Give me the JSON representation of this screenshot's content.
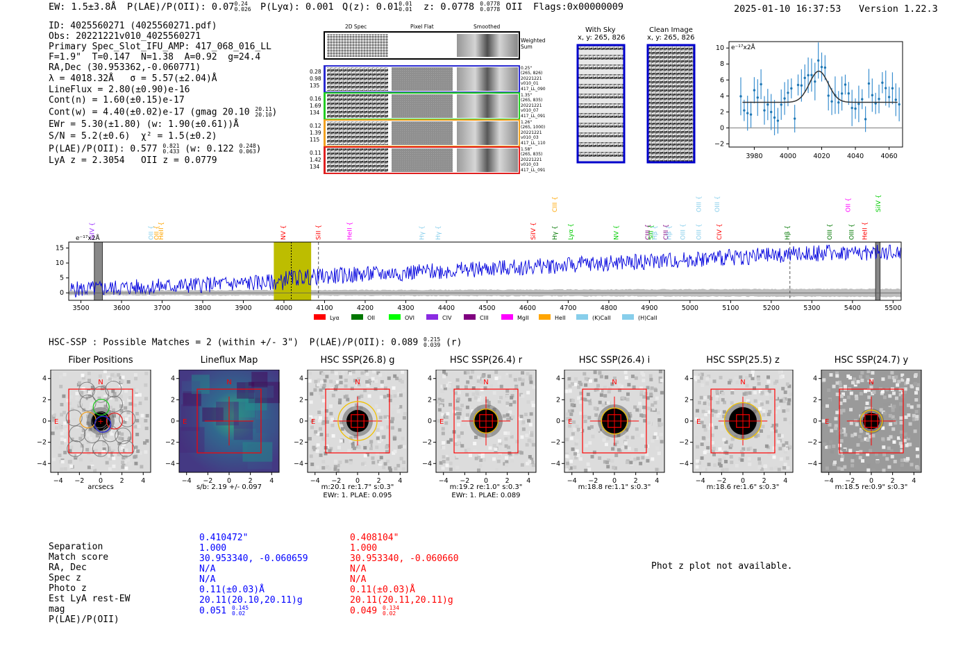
{
  "header": {
    "ew": "EW: 1.5±3.8Å",
    "plae_label": "P(LAE)/P(OII): 0.07",
    "plae_hi": "0.24",
    "plae_lo": "0.026",
    "plya": "P(Lyα): 0.001",
    "qz_label": "Q(z): 0.01",
    "qz_hi": "0.01",
    "qz_lo": "0.01",
    "z_label": "z: 0.0778",
    "z_hi": "0.0778",
    "z_lo": "0.0778",
    "z_type": "OII",
    "flags": "Flags:0x00000009",
    "datetime": "2025-01-10 16:37:53",
    "version": "Version 1.22.3"
  },
  "info": {
    "id": "ID: 4025560271 (4025560271.pdf)",
    "obs": "Obs: 20221221v010_4025560271",
    "primary": "Primary Spec_Slot_IFU_AMP: 417_068_016_LL",
    "params": "F=1.9\"  T=0.147  N=1.38  A=0.92  g=24.4",
    "radec": "RA,Dec (30.953362,-0.060771)",
    "lambda": "λ = 4018.32Å   σ = 5.57(±2.04)Å",
    "lineflux": "LineFlux = 2.80(±0.90)e-16",
    "contn": "Cont(n) = 1.60(±0.15)e-17",
    "contw": "Cont(w) = 4.40(±0.02)e-17 (gmag 20.10",
    "contw_hi": "20.11",
    "contw_lo": "20.10",
    "ewr": "EWr = 5.30(±1.80) (w: 1.90(±0.61))Å",
    "sn": "S/N = 5.2(±0.6)  χ² = 1.5(±0.2)",
    "plae": "P(LAE)/P(OII): 0.577",
    "plae_hi": "0.821",
    "plae_lo": "0.433",
    "plae_w": "(w: 0.122",
    "plae_w_hi": "0.248",
    "plae_w_lo": "0.063",
    "lya_z": "LyA z = 2.3054   OII z = 0.0779"
  },
  "cutouts": {
    "col_2d": "2D Spec",
    "col_flat": "Pixel Flat",
    "col_smooth": "Smoothed",
    "weighted": "Weighted Sum",
    "fibers": [
      {
        "w1": "0.28",
        "w2": "0.98",
        "w3": "135",
        "d": "0.25\"",
        "xy": "(265, 826)",
        "date": "20221221",
        "shot": "v010_01",
        "amp": "417_LL_090",
        "color": "#2a2ad0"
      },
      {
        "w1": "0.16",
        "w2": "1.69",
        "w3": "134",
        "d": "1.35\"",
        "xy": "(265, 835)",
        "date": "20221221",
        "shot": "v010_07",
        "amp": "417_LL_091",
        "color": "#22cc22"
      },
      {
        "w1": "0.12",
        "w2": "1.39",
        "w3": "115",
        "d": "1.26\"",
        "xy": "(265, 1000)",
        "date": "20221221",
        "shot": "v010_03",
        "amp": "417_LL_110",
        "color": "#f0a020"
      },
      {
        "w1": "0.11",
        "w2": "1.42",
        "w3": "134",
        "d": "1.58\"",
        "xy": "(265, 835)",
        "date": "20221221",
        "shot": "v010_03",
        "amp": "417_LL_091",
        "color": "#e02020"
      }
    ],
    "with_sky": "With Sky",
    "with_sky_xy": "x, y: 265, 826",
    "clean": "Clean Image",
    "clean_xy": "x, y: 265, 826"
  },
  "zoom_plot": {
    "unit": "e⁻¹⁷x2Å",
    "xticks": [
      "3980",
      "4000",
      "4020",
      "4040",
      "4060"
    ],
    "yticks": [
      "10",
      "8",
      "6",
      "4",
      "2",
      "0",
      "−2"
    ]
  },
  "spectrum": {
    "unit": "e⁻¹⁷x2Å",
    "xticks": [
      "3500",
      "3600",
      "3700",
      "3800",
      "3900",
      "4000",
      "4100",
      "4200",
      "4300",
      "4400",
      "4500",
      "4600",
      "4700",
      "4800",
      "4900",
      "5000",
      "5100",
      "5200",
      "5300",
      "5400",
      "5500"
    ],
    "yticks": [
      "15",
      "10",
      "5",
      "0"
    ],
    "legend": [
      {
        "label": "Lyα",
        "color": "#ff0000"
      },
      {
        "label": "OII",
        "color": "#007700"
      },
      {
        "label": "OVI",
        "color": "#00ff00"
      },
      {
        "label": "CIV",
        "color": "#8a2be2"
      },
      {
        "label": "CIII",
        "color": "#800080"
      },
      {
        "label": "MgII",
        "color": "#ff00ff"
      },
      {
        "label": "HeII",
        "color": "#ffa500"
      },
      {
        "label": "(K)CaII",
        "color": "#87ceeb"
      },
      {
        "label": "(H)CaII",
        "color": "#87ceeb"
      }
    ],
    "lines": [
      {
        "label": "SiIV",
        "wave": 3527,
        "color": "#9b30ff",
        "row": 1
      },
      {
        "label": "OII",
        "wave": 3673,
        "color": "#87ceeb",
        "row": 1
      },
      {
        "label": "OII",
        "wave": 3686,
        "color": "#ffa500",
        "row": 1
      },
      {
        "label": "HeII",
        "wave": 3697,
        "color": "#ffa500",
        "row": 1
      },
      {
        "label": "NV",
        "wave": 3998,
        "color": "#ff0000",
        "row": 1
      },
      {
        "label": "SiII",
        "wave": 4085,
        "color": "#ff0000",
        "row": 1
      },
      {
        "label": "HeII",
        "wave": 4162,
        "color": "#ff00ff",
        "row": 1
      },
      {
        "label": "Hγ",
        "wave": 4339,
        "color": "#87ceeb",
        "row": 1
      },
      {
        "label": "Hγ",
        "wave": 4380,
        "color": "#87ceeb",
        "row": 1
      },
      {
        "label": "SiIV",
        "wave": 4614,
        "color": "#ff0000",
        "row": 1
      },
      {
        "label": "CIII",
        "wave": 4667,
        "color": "#ffa500",
        "row": 0
      },
      {
        "label": "Hγ",
        "wave": 4667,
        "color": "#007700",
        "row": 1
      },
      {
        "label": "Lyα",
        "wave": 4706,
        "color": "#00cc00",
        "row": 1
      },
      {
        "label": "NV",
        "wave": 4818,
        "color": "#00cc00",
        "row": 1
      },
      {
        "label": "CIII",
        "wave": 4896,
        "color": "#800080",
        "row": 1
      },
      {
        "label": "SiII",
        "wave": 4904,
        "color": "#00cc00",
        "row": 1
      },
      {
        "label": "Hβ",
        "wave": 4913,
        "color": "#87ceeb",
        "row": 1
      },
      {
        "label": "CIII",
        "wave": 4940,
        "color": "#800080",
        "row": 1
      },
      {
        "label": "Hβ",
        "wave": 4948,
        "color": "#87ceeb",
        "row": 1
      },
      {
        "label": "OIII",
        "wave": 4982,
        "color": "#87ceeb",
        "row": 1
      },
      {
        "label": "OIII",
        "wave": 5022,
        "color": "#87ceeb",
        "row": 1
      },
      {
        "label": "OIII",
        "wave": 5022,
        "color": "#87ceeb",
        "row": 0
      },
      {
        "label": "OIII",
        "wave": 5067,
        "color": "#87ceeb",
        "row": 0
      },
      {
        "label": "CIV",
        "wave": 5072,
        "color": "#ff0000",
        "row": 1
      },
      {
        "label": "Hβ",
        "wave": 5240,
        "color": "#007700",
        "row": 1
      },
      {
        "label": "OIII",
        "wave": 5344,
        "color": "#007700",
        "row": 1
      },
      {
        "label": "OII",
        "wave": 5389,
        "color": "#ff00ff",
        "row": 0
      },
      {
        "label": "OIII",
        "wave": 5398,
        "color": "#007700",
        "row": 1
      },
      {
        "label": "HeII",
        "wave": 5430,
        "color": "#ff0000",
        "row": 1
      },
      {
        "label": "SiIV",
        "wave": 5464,
        "color": "#00cc00",
        "row": 0
      }
    ]
  },
  "hsc": {
    "summary": "HSC-SSP : Possible Matches = 2 (within +/- 3\")  P(LAE)/P(OII): 0.089",
    "summary_hi": "0.215",
    "summary_lo": "0.039",
    "summary_band": "(r)",
    "panels": [
      {
        "title": "Fiber Positions",
        "l1": "arcsecs",
        "l2": ""
      },
      {
        "title": "Lineflux Map",
        "l1": "s/b: 2.19 +/- 0.097",
        "l2": ""
      },
      {
        "title": "HSC SSP(26.8) g",
        "l1": "m:20.1  re:1.7\"  s:0.3\"",
        "l2": "EWr: 1. PLAE: 0.095"
      },
      {
        "title": "HSC SSP(26.4) r",
        "l1": "m:19.2  re:1.0\"  s:0.3\"",
        "l2": "EWr: 1. PLAE: 0.089"
      },
      {
        "title": "HSC SSP(26.4) i",
        "l1": "m:18.8  re:1.1\"  s:0.3\"",
        "l2": ""
      },
      {
        "title": "HSC SSP(25.5) z",
        "l1": "m:18.6  re:1.6\"  s:0.3\"",
        "l2": ""
      },
      {
        "title": "HSC SSP(24.7) y",
        "l1": "m:18.5  re:0.9\"  s:0.3\"",
        "l2": ""
      }
    ],
    "ticks": [
      "−4",
      "−2",
      "0",
      "2",
      "4"
    ],
    "yticks": [
      "4",
      "2",
      "0",
      "−2",
      "−4"
    ],
    "compass_n": "N",
    "compass_e": "E"
  },
  "matches": {
    "labels": [
      "Separation",
      "Match score",
      "RA, Dec",
      "Spec z",
      "Photo z",
      "Est LyA rest-EW",
      "mag",
      "P(LAE)/P(OII)"
    ],
    "blue": [
      "0.410472\"",
      "1.000",
      "30.953340, -0.060659",
      "N/A",
      "N/A",
      "0.11(±0.03)Å",
      "20.11(20.10,20.11)g",
      "0.051"
    ],
    "blue_hi": "0.145",
    "blue_lo": "0.02",
    "red": [
      "0.408104\"",
      "1.000",
      "30.953340, -0.060660",
      "N/A",
      "N/A",
      "0.11(±0.03)Å",
      "20.11(20.11,20.11)g",
      "0.049"
    ],
    "red_hi": "0.134",
    "red_lo": "0.02",
    "photz_msg": "Phot z plot not available."
  }
}
